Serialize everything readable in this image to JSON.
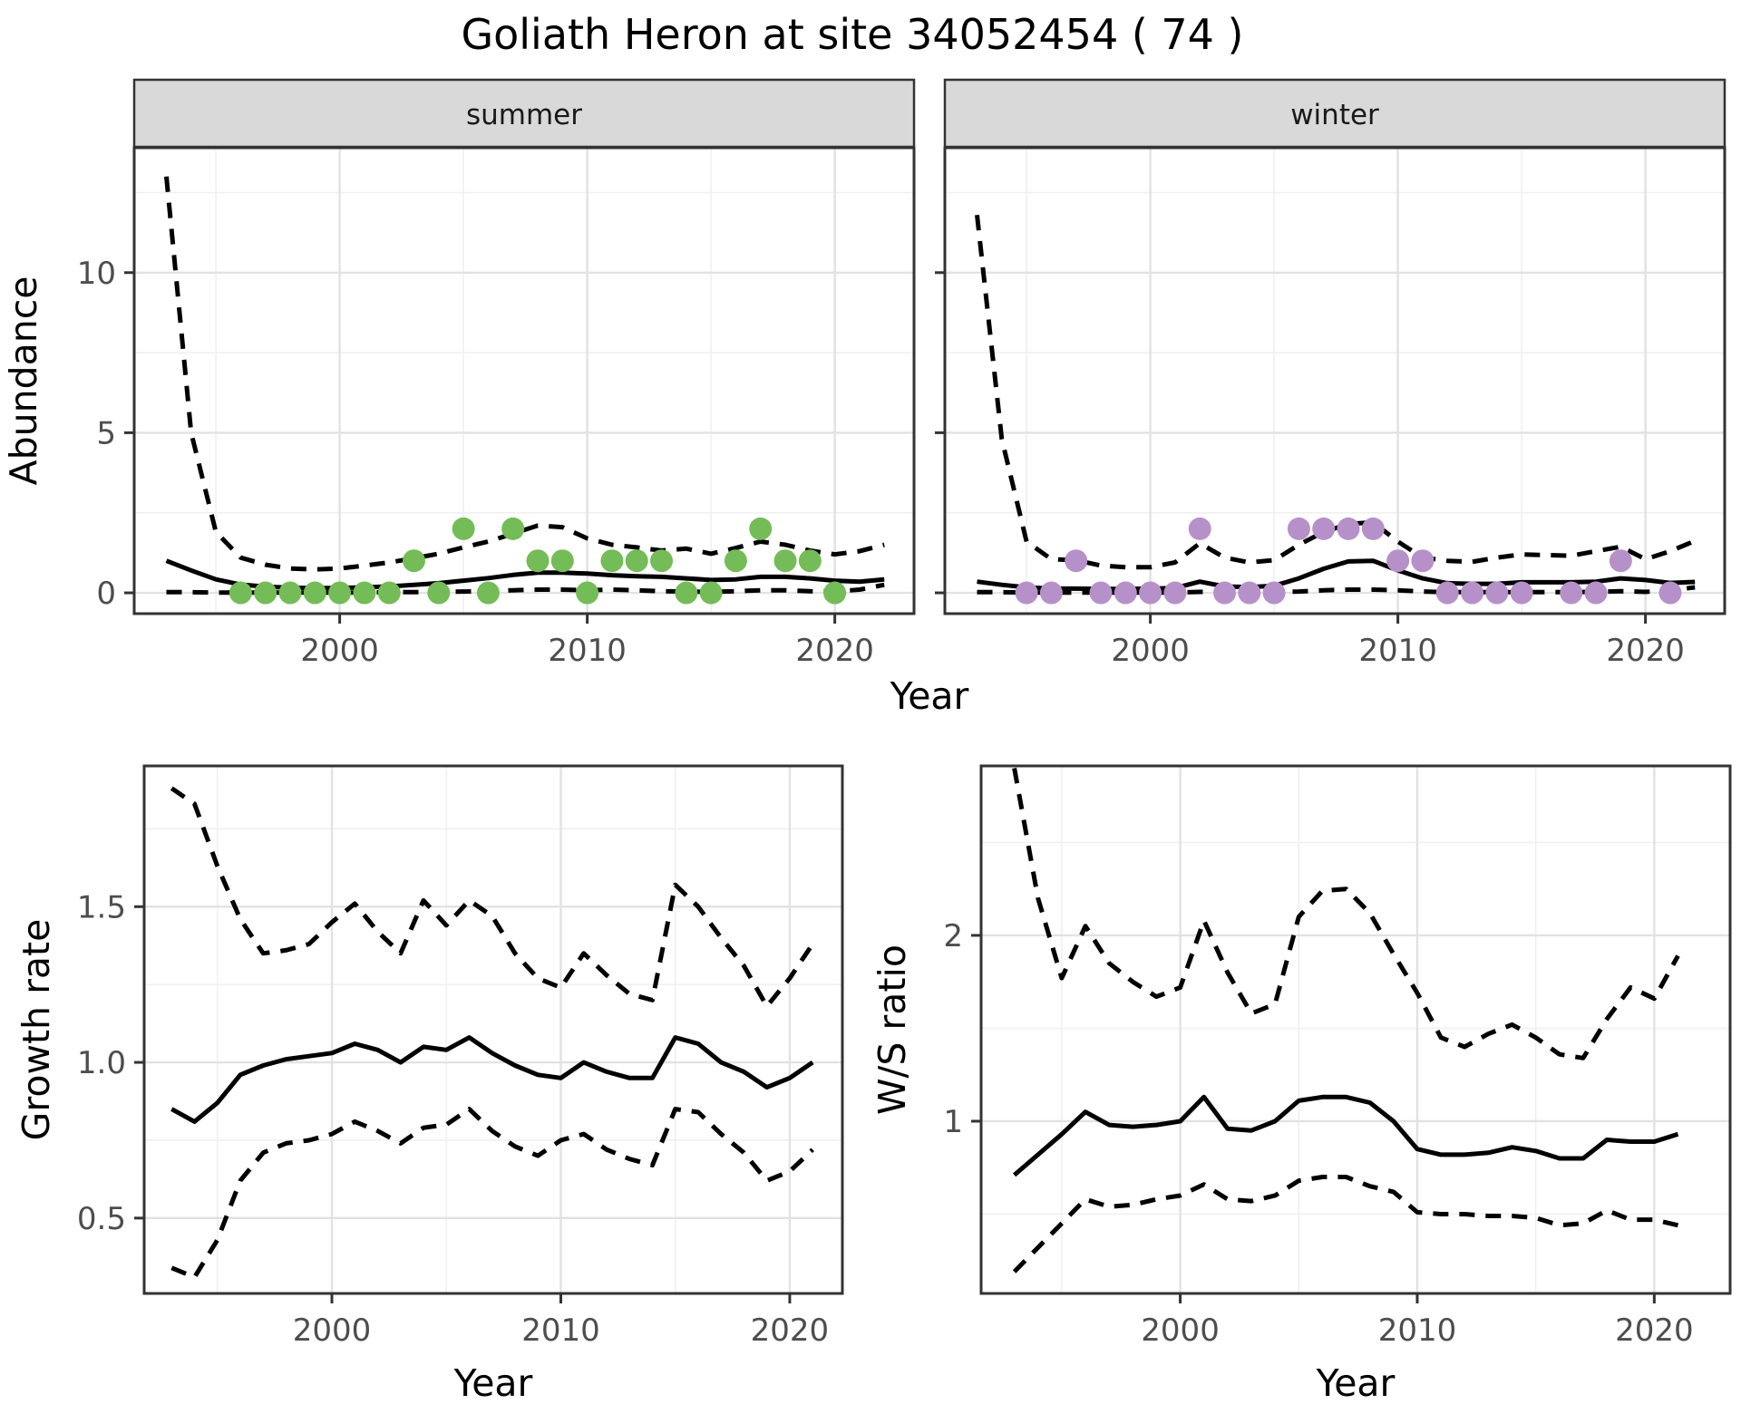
{
  "chart_data": {
    "title": "Goliath Heron at site 34052454 ( 74 )",
    "abundance": {
      "type": "line",
      "xlabel": "Year",
      "ylabel": "Abundance",
      "xticks": [
        2000,
        2010,
        2020
      ],
      "yticks": [
        0,
        5,
        10
      ],
      "ytick_labels": [
        "0",
        "5",
        "10"
      ],
      "xlim": [
        1991.7,
        2023.2
      ],
      "ylim": [
        -0.65,
        13.9
      ],
      "grid": "on",
      "years": [
        1993,
        1994,
        1995,
        1996,
        1997,
        1998,
        1999,
        2000,
        2001,
        2002,
        2003,
        2004,
        2005,
        2006,
        2007,
        2008,
        2009,
        2010,
        2011,
        2012,
        2013,
        2014,
        2015,
        2016,
        2017,
        2018,
        2019,
        2020,
        2021,
        2022
      ],
      "facets": [
        {
          "label": "summer",
          "point_color": "#74BC57",
          "series": [
            {
              "name": "upper CI (dashed)",
              "values": [
                13.0,
                5.0,
                1.9,
                1.1,
                0.88,
                0.76,
                0.73,
                0.76,
                0.85,
                0.95,
                1.08,
                1.22,
                1.42,
                1.6,
                1.85,
                2.1,
                2.05,
                1.7,
                1.5,
                1.42,
                1.32,
                1.38,
                1.22,
                1.4,
                1.6,
                1.5,
                1.32,
                1.2,
                1.3,
                1.5
              ]
            },
            {
              "name": "mean (solid)",
              "values": [
                1.0,
                0.7,
                0.42,
                0.26,
                0.19,
                0.16,
                0.15,
                0.15,
                0.17,
                0.2,
                0.25,
                0.3,
                0.38,
                0.46,
                0.56,
                0.63,
                0.63,
                0.6,
                0.55,
                0.52,
                0.5,
                0.45,
                0.4,
                0.42,
                0.5,
                0.5,
                0.45,
                0.38,
                0.35,
                0.42
              ]
            },
            {
              "name": "lower CI (dashed)",
              "values": [
                0.02,
                0.02,
                0.01,
                0.01,
                0.01,
                0.01,
                0.01,
                0.01,
                0.01,
                0.02,
                0.02,
                0.03,
                0.04,
                0.05,
                0.08,
                0.1,
                0.1,
                0.08,
                0.1,
                0.08,
                0.05,
                0.04,
                0.03,
                0.05,
                0.08,
                0.08,
                0.05,
                0.04,
                0.1,
                0.25
              ]
            }
          ],
          "observed_points": [
            [
              1996,
              0
            ],
            [
              1997,
              0
            ],
            [
              1998,
              0
            ],
            [
              1999,
              0
            ],
            [
              2000,
              0
            ],
            [
              2001,
              0
            ],
            [
              2002,
              0
            ],
            [
              2003,
              1
            ],
            [
              2004,
              0
            ],
            [
              2005,
              2
            ],
            [
              2006,
              0
            ],
            [
              2007,
              2
            ],
            [
              2008,
              1
            ],
            [
              2009,
              1
            ],
            [
              2010,
              0
            ],
            [
              2011,
              1
            ],
            [
              2012,
              1
            ],
            [
              2013,
              1
            ],
            [
              2014,
              0
            ],
            [
              2015,
              0
            ],
            [
              2016,
              1
            ],
            [
              2017,
              2
            ],
            [
              2018,
              1
            ],
            [
              2019,
              1
            ],
            [
              2020,
              0
            ]
          ]
        },
        {
          "label": "winter",
          "point_color": "#B691C9",
          "series": [
            {
              "name": "upper CI (dashed)",
              "values": [
                11.8,
                4.8,
                1.6,
                1.05,
                1.02,
                0.85,
                0.8,
                0.8,
                0.95,
                1.55,
                1.1,
                0.95,
                1.02,
                1.5,
                1.9,
                2.15,
                2.2,
                1.6,
                1.1,
                1.0,
                0.97,
                1.1,
                1.2,
                1.18,
                1.16,
                1.3,
                1.44,
                1.05,
                1.3,
                1.62
              ]
            },
            {
              "name": "mean (solid)",
              "values": [
                0.35,
                0.25,
                0.17,
                0.13,
                0.13,
                0.12,
                0.12,
                0.13,
                0.15,
                0.35,
                0.2,
                0.18,
                0.22,
                0.45,
                0.75,
                0.98,
                1.0,
                0.7,
                0.45,
                0.3,
                0.28,
                0.28,
                0.33,
                0.33,
                0.33,
                0.35,
                0.45,
                0.4,
                0.31,
                0.34
              ]
            },
            {
              "name": "lower CI (dashed)",
              "values": [
                0.02,
                0.02,
                0.01,
                0.01,
                0.01,
                0.01,
                0.01,
                0.01,
                0.01,
                0.03,
                0.02,
                0.01,
                0.02,
                0.04,
                0.08,
                0.1,
                0.1,
                0.08,
                0.04,
                0.02,
                0.02,
                0.02,
                0.02,
                0.02,
                0.02,
                0.03,
                0.05,
                0.03,
                0.08,
                0.17
              ]
            }
          ],
          "observed_points": [
            [
              1995,
              0
            ],
            [
              1996,
              0
            ],
            [
              1997,
              1
            ],
            [
              1998,
              0
            ],
            [
              1999,
              0
            ],
            [
              2000,
              0
            ],
            [
              2001,
              0
            ],
            [
              2002,
              2
            ],
            [
              2003,
              0
            ],
            [
              2004,
              0
            ],
            [
              2005,
              0
            ],
            [
              2006,
              2
            ],
            [
              2007,
              2
            ],
            [
              2008,
              2
            ],
            [
              2009,
              2
            ],
            [
              2010,
              1
            ],
            [
              2011,
              1
            ],
            [
              2012,
              0
            ],
            [
              2013,
              0
            ],
            [
              2014,
              0
            ],
            [
              2015,
              0
            ],
            [
              2017,
              0
            ],
            [
              2018,
              0
            ],
            [
              2019,
              1
            ],
            [
              2021,
              0
            ]
          ]
        }
      ]
    },
    "growth": {
      "type": "line",
      "xlabel": "Year",
      "ylabel": "Growth rate",
      "xticks": [
        2000,
        2010,
        2020
      ],
      "yticks": [
        0.5,
        1.0,
        1.5
      ],
      "ytick_labels": [
        "0.5",
        "1.0",
        "1.5"
      ],
      "xlim": [
        1991.8,
        2022.3
      ],
      "ylim": [
        0.258,
        1.952
      ],
      "grid": "on",
      "years": [
        1993,
        1994,
        1995,
        1996,
        1997,
        1998,
        1999,
        2000,
        2001,
        2002,
        2003,
        2004,
        2005,
        2006,
        2007,
        2008,
        2009,
        2010,
        2011,
        2012,
        2013,
        2014,
        2015,
        2016,
        2017,
        2018,
        2019,
        2020,
        2021
      ],
      "series": [
        {
          "name": "upper CI (dashed)",
          "values": [
            1.88,
            1.83,
            1.63,
            1.46,
            1.35,
            1.36,
            1.38,
            1.45,
            1.51,
            1.42,
            1.35,
            1.52,
            1.44,
            1.52,
            1.47,
            1.35,
            1.27,
            1.24,
            1.35,
            1.28,
            1.22,
            1.2,
            1.57,
            1.5,
            1.4,
            1.31,
            1.18,
            1.27,
            1.38
          ]
        },
        {
          "name": "mean (solid)",
          "values": [
            0.85,
            0.81,
            0.87,
            0.96,
            0.99,
            1.01,
            1.02,
            1.03,
            1.06,
            1.04,
            1.0,
            1.05,
            1.04,
            1.08,
            1.03,
            0.99,
            0.96,
            0.95,
            1.0,
            0.97,
            0.95,
            0.95,
            1.08,
            1.06,
            1.0,
            0.97,
            0.92,
            0.95,
            1.0
          ]
        },
        {
          "name": "lower CI (dashed)",
          "values": [
            0.34,
            0.31,
            0.43,
            0.62,
            0.71,
            0.74,
            0.75,
            0.77,
            0.81,
            0.78,
            0.74,
            0.79,
            0.8,
            0.85,
            0.78,
            0.73,
            0.7,
            0.75,
            0.77,
            0.72,
            0.69,
            0.67,
            0.85,
            0.84,
            0.77,
            0.71,
            0.62,
            0.65,
            0.72
          ]
        }
      ]
    },
    "ws": {
      "type": "line",
      "xlabel": "Year",
      "ylabel": "W/S ratio",
      "xticks": [
        2000,
        2010,
        2020
      ],
      "yticks": [
        1,
        2
      ],
      "ytick_labels": [
        "1",
        "2"
      ],
      "xlim": [
        1991.6,
        2023.2
      ],
      "ylim": [
        0.073,
        2.912
      ],
      "grid": "on",
      "years": [
        1993,
        1994,
        1995,
        1996,
        1997,
        1998,
        1999,
        2000,
        2001,
        2002,
        2003,
        2004,
        2005,
        2006,
        2007,
        2008,
        2009,
        2010,
        2011,
        2012,
        2013,
        2014,
        2015,
        2016,
        2017,
        2018,
        2019,
        2020,
        2021
      ],
      "series": [
        {
          "name": "upper CI (dashed)",
          "values": [
            2.9,
            2.2,
            1.77,
            2.05,
            1.85,
            1.75,
            1.67,
            1.72,
            2.08,
            1.8,
            1.58,
            1.63,
            2.1,
            2.24,
            2.25,
            2.12,
            1.9,
            1.69,
            1.45,
            1.4,
            1.47,
            1.52,
            1.45,
            1.36,
            1.34,
            1.55,
            1.72,
            1.66,
            1.89
          ]
        },
        {
          "name": "mean (solid)",
          "values": [
            0.71,
            0.82,
            0.93,
            1.05,
            0.98,
            0.97,
            0.98,
            1.0,
            1.13,
            0.96,
            0.95,
            1.0,
            1.11,
            1.13,
            1.13,
            1.1,
            1.0,
            0.85,
            0.82,
            0.82,
            0.83,
            0.86,
            0.84,
            0.8,
            0.8,
            0.9,
            0.89,
            0.89,
            0.93
          ]
        },
        {
          "name": "lower CI (dashed)",
          "values": [
            0.19,
            0.32,
            0.45,
            0.58,
            0.54,
            0.55,
            0.58,
            0.6,
            0.66,
            0.58,
            0.57,
            0.6,
            0.68,
            0.7,
            0.7,
            0.65,
            0.62,
            0.51,
            0.5,
            0.5,
            0.49,
            0.49,
            0.48,
            0.44,
            0.45,
            0.52,
            0.47,
            0.47,
            0.44
          ]
        }
      ]
    },
    "style": {
      "line_color": "#000000",
      "panel_border_color": "#333333",
      "strip_fill": "#D9D9D9",
      "grid_major_color": "#E2E2E2",
      "grid_minor_color": "#F0F0F0",
      "tick_label_color": "#4D4D4D",
      "summer_point_color": "#74BC57",
      "winter_point_color": "#B691C9"
    }
  }
}
